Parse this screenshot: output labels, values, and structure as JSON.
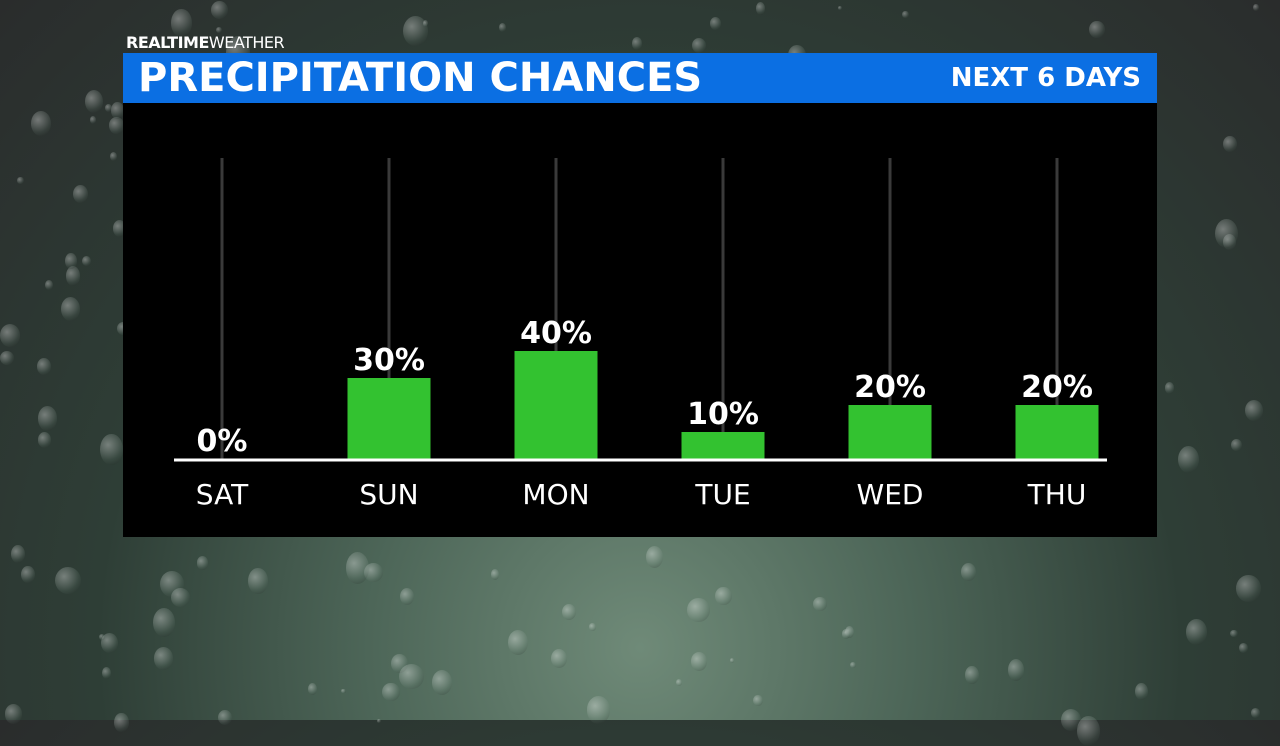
{
  "brand": {
    "bold": "REALTIME",
    "light": "WEATHER"
  },
  "header": {
    "title": "PRECIPITATION CHANCES",
    "subtitle": "NEXT 6 DAYS"
  },
  "colors": {
    "header_blue": "#0b6fe3",
    "bar_green": "#33c230",
    "panel": "#000000"
  },
  "chart_data": {
    "type": "bar",
    "title": "PRECIPITATION CHANCES",
    "subtitle": "NEXT 6 DAYS",
    "categories": [
      "SAT",
      "SUN",
      "MON",
      "TUE",
      "WED",
      "THU"
    ],
    "values": [
      0,
      30,
      40,
      10,
      20,
      20
    ],
    "data_labels": [
      "0%",
      "30%",
      "40%",
      "10%",
      "20%",
      "20%"
    ],
    "unit": "%",
    "grid": "vertical lines per category"
  }
}
